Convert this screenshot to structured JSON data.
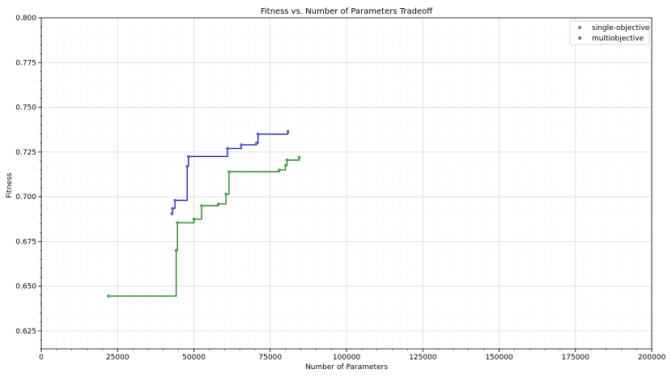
{
  "chart_data": {
    "type": "line",
    "title": "Fitness vs. Number of Parameters Tradeoff",
    "xlabel": "Number of Parameters",
    "ylabel": "Fitness",
    "xlim": [
      0,
      200000
    ],
    "ylim": [
      0.615,
      0.8
    ],
    "xticks": [
      0,
      25000,
      50000,
      75000,
      100000,
      125000,
      150000,
      175000,
      200000
    ],
    "yticks": [
      0.625,
      0.65,
      0.675,
      0.7,
      0.725,
      0.75,
      0.775,
      0.8
    ],
    "xtick_labels": [
      "0",
      "25000",
      "50000",
      "75000",
      "100000",
      "125000",
      "150000",
      "175000",
      "200000"
    ],
    "ytick_labels": [
      "0.625",
      "0.650",
      "0.675",
      "0.700",
      "0.725",
      "0.750",
      "0.775",
      "0.800"
    ],
    "grid": true,
    "legend_position": "top-right",
    "step_style": "post",
    "series": [
      {
        "name": "single-objective",
        "color": "#1a8a1a",
        "marker_color": "#4caf50",
        "points": [
          {
            "x": 22000,
            "y": 0.6445
          },
          {
            "x": 44200,
            "y": 0.67
          },
          {
            "x": 44600,
            "y": 0.6855
          },
          {
            "x": 50000,
            "y": 0.6875
          },
          {
            "x": 52500,
            "y": 0.695
          },
          {
            "x": 58000,
            "y": 0.696
          },
          {
            "x": 60500,
            "y": 0.7015
          },
          {
            "x": 61500,
            "y": 0.714
          },
          {
            "x": 78000,
            "y": 0.715
          },
          {
            "x": 80000,
            "y": 0.7175
          },
          {
            "x": 80500,
            "y": 0.7205
          },
          {
            "x": 84500,
            "y": 0.722
          }
        ]
      },
      {
        "name": "multiobjective",
        "color": "#1a1acc",
        "marker_color": "#5b6ee1",
        "points": [
          {
            "x": 42800,
            "y": 0.6905
          },
          {
            "x": 43000,
            "y": 0.6935
          },
          {
            "x": 43800,
            "y": 0.698
          },
          {
            "x": 47800,
            "y": 0.717
          },
          {
            "x": 48200,
            "y": 0.7225
          },
          {
            "x": 61000,
            "y": 0.727
          },
          {
            "x": 65500,
            "y": 0.729
          },
          {
            "x": 70500,
            "y": 0.73
          },
          {
            "x": 71000,
            "y": 0.735
          },
          {
            "x": 80800,
            "y": 0.7365
          }
        ]
      }
    ]
  }
}
